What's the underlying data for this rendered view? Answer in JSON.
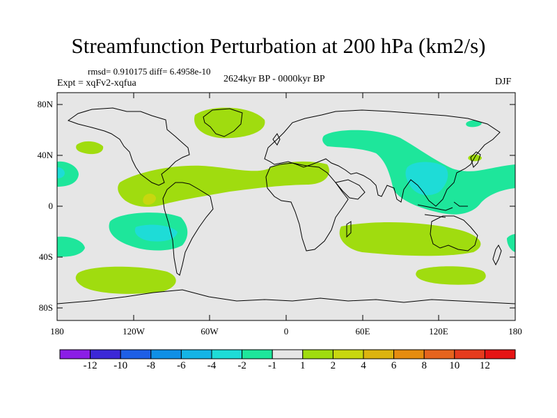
{
  "header": {
    "title": "Streamfunction Perturbation at 200 hPa (km2/s)",
    "stats": "rmsd= 0.910175 diff= 6.4958e-10",
    "experiment": "Expt = xqFv2-xqfua",
    "period": "2624kyr BP - 0000kyr BP",
    "season": "DJF"
  },
  "axes": {
    "y_ticks": [
      "80N",
      "40N",
      "0",
      "40S",
      "80S"
    ],
    "x_ticks": [
      "180",
      "120W",
      "60W",
      "0",
      "60E",
      "120E",
      "180"
    ]
  },
  "colorbar": {
    "labels": [
      "-12",
      "-10",
      "-8",
      "-6",
      "-4",
      "-2",
      "-1",
      "1",
      "2",
      "4",
      "6",
      "8",
      "10",
      "12"
    ],
    "colors": [
      "#8b1ee6",
      "#3c28d7",
      "#1e5fe6",
      "#0f8fe6",
      "#14b4e6",
      "#1edcd7",
      "#1ee69b",
      "#e6e6e6",
      "#a0dc0f",
      "#c8d70f",
      "#dcb40f",
      "#e68c0f",
      "#e6641e",
      "#e63c1e",
      "#e61414"
    ]
  },
  "colors": {
    "ocean": "#e6e6e6",
    "positive_1_2": "#a0dc0f",
    "positive_2_4": "#c8d70f",
    "negative_1_2": "#1ee69b",
    "negative_2_4": "#1edcd7"
  }
}
